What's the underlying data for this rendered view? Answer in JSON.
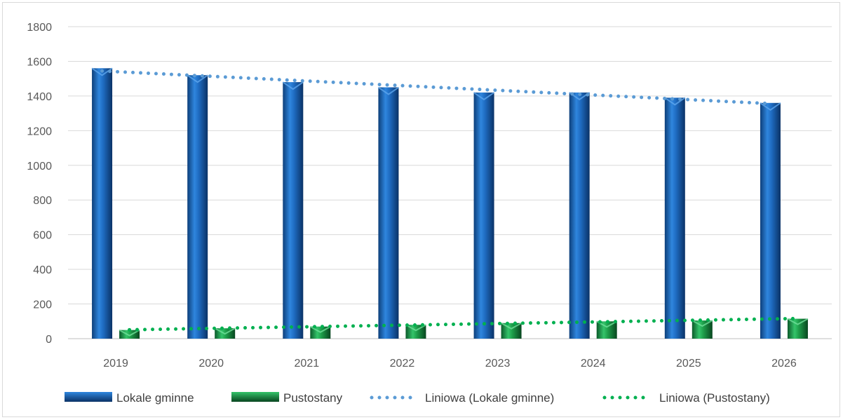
{
  "chart_data": {
    "type": "bar",
    "categories": [
      "2019",
      "2020",
      "2021",
      "2022",
      "2023",
      "2024",
      "2025",
      "2026"
    ],
    "series": [
      {
        "name": "Lokale gminne",
        "values": [
          1560,
          1520,
          1480,
          1450,
          1420,
          1420,
          1390,
          1360
        ],
        "color": "#1f6cc2"
      },
      {
        "name": "Pustostany",
        "values": [
          50,
          60,
          70,
          80,
          90,
          100,
          105,
          115
        ],
        "color": "#1e9e4a"
      }
    ],
    "trendlines": [
      {
        "name": "Liniowa (Lokale gminne)",
        "of_series": "Lokale gminne",
        "style": "dotted",
        "color": "#5b9bd5"
      },
      {
        "name": "Liniowa (Pustostany)",
        "of_series": "Pustostany",
        "style": "dotted",
        "color": "#00b050"
      }
    ],
    "yticks": [
      "0",
      "200",
      "400",
      "600",
      "800",
      "1000",
      "1200",
      "1400",
      "1600",
      "1800"
    ],
    "ylim": [
      0,
      1800
    ],
    "grid": true,
    "legend": "bottom"
  }
}
